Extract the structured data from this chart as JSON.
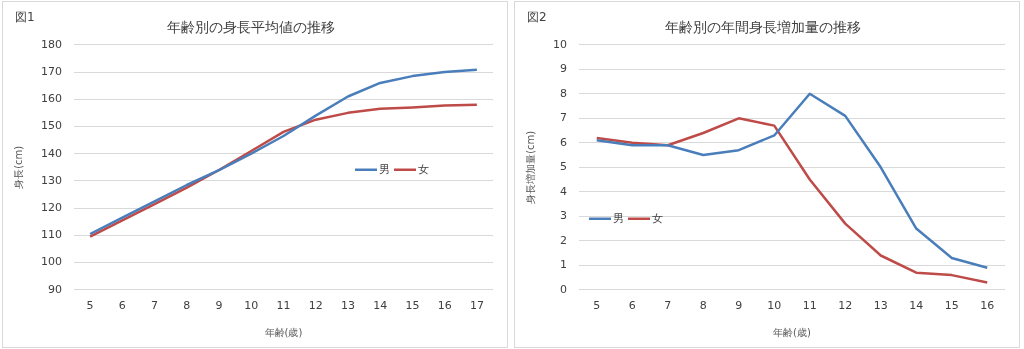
{
  "chart_data": [
    {
      "type": "line",
      "title": "年齢別の身長平均値の推移",
      "xlabel": "年齢(歳)",
      "ylabel": "身長(cm)",
      "annotations": [
        "図1"
      ],
      "categories": [
        "5",
        "6",
        "7",
        "8",
        "9",
        "10",
        "11",
        "12",
        "13",
        "14",
        "15",
        "16",
        "17"
      ],
      "series": [
        {
          "name": "男",
          "color": "#4a7ebb",
          "values": [
            110.5,
            116.5,
            122.5,
            128.5,
            134,
            140,
            146.5,
            154,
            161,
            166,
            168.5,
            170,
            170.8
          ]
        },
        {
          "name": "女",
          "color": "#be4b48",
          "values": [
            109.5,
            115.5,
            121.5,
            127.5,
            134,
            141,
            148,
            152.5,
            155,
            156.5,
            157,
            157.7,
            158
          ]
        }
      ],
      "ylim": [
        90,
        180
      ],
      "yticks": [
        90,
        100,
        110,
        120,
        130,
        140,
        150,
        160,
        170,
        180
      ],
      "grid": "y",
      "legend": "right",
      "marker": "none",
      "line_style": "solid"
    },
    {
      "type": "line",
      "title": "年齢別の年間身長増加量の推移",
      "xlabel": "年齢(歳)",
      "ylabel": "身長増加量(cm)",
      "annotations": [
        "図2"
      ],
      "categories": [
        "5",
        "6",
        "7",
        "8",
        "9",
        "10",
        "11",
        "12",
        "13",
        "14",
        "15",
        "16"
      ],
      "series": [
        {
          "name": "男",
          "color": "#4a7ebb",
          "values": [
            6.1,
            5.9,
            5.9,
            5.5,
            5.7,
            6.3,
            8.0,
            7.1,
            5.0,
            2.5,
            1.3,
            0.9
          ]
        },
        {
          "name": "女",
          "color": "#be4b48",
          "values": [
            6.2,
            6.0,
            5.9,
            6.4,
            7.0,
            6.7,
            4.5,
            2.7,
            1.4,
            0.7,
            0.6,
            0.3
          ]
        }
      ],
      "ylim": [
        0,
        10
      ],
      "yticks": [
        0,
        1,
        2,
        3,
        4,
        5,
        6,
        7,
        8,
        9,
        10
      ],
      "grid": "y",
      "legend": "left",
      "marker": "none",
      "line_style": "solid"
    }
  ]
}
